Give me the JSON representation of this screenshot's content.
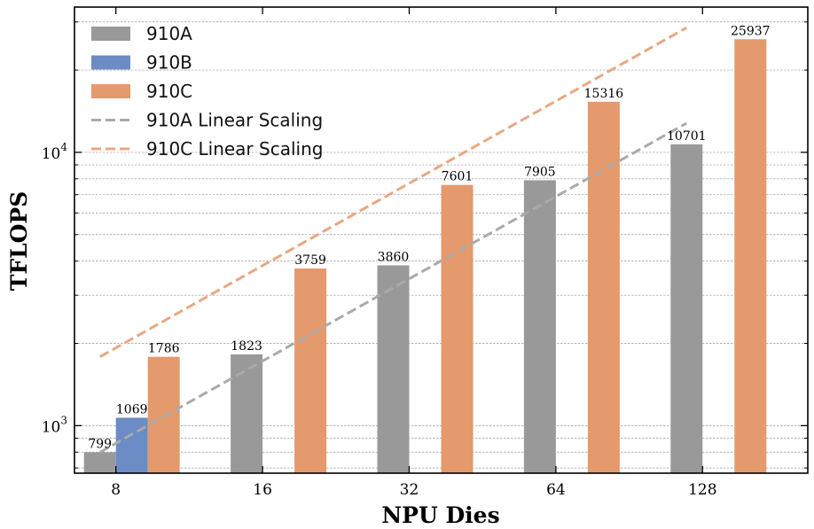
{
  "chart_data": {
    "type": "bar",
    "xlabel": "NPU Dies",
    "ylabel": "TFLOPS",
    "yscale": "log",
    "ylim": [
      670,
      34000
    ],
    "grid": "horizontal",
    "legend_position": "top-left",
    "categories": [
      "8",
      "16",
      "32",
      "64",
      "128"
    ],
    "series": [
      {
        "name": "910A",
        "color": "#999999",
        "values": [
          799,
          1823,
          3860,
          7905,
          10701
        ]
      },
      {
        "name": "910B",
        "color": "#6b8cc4",
        "values": [
          1069,
          null,
          null,
          null,
          null
        ]
      },
      {
        "name": "910C",
        "color": "#e49a6c",
        "values": [
          1786,
          3759,
          7601,
          15316,
          25937
        ]
      }
    ],
    "reference_lines": [
      {
        "name": "910A Linear Scaling",
        "color": "#aaaaaa",
        "style": "dashed",
        "from": {
          "x": "8",
          "y": 799
        },
        "to": {
          "x": "128",
          "y": 12784
        }
      },
      {
        "name": "910C Linear Scaling",
        "color": "#e8a882",
        "style": "dashed",
        "from": {
          "x": "8",
          "y": 1786
        },
        "to": {
          "x": "128",
          "y": 28576
        }
      }
    ],
    "y_ticks": [
      {
        "base": "10",
        "exp": "3",
        "value": 1000
      },
      {
        "base": "10",
        "exp": "4",
        "value": 10000
      }
    ]
  }
}
